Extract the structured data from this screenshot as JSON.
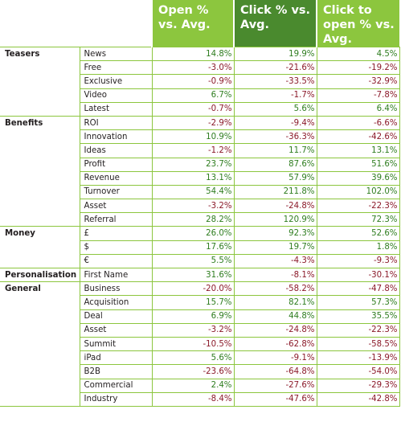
{
  "headers": [
    "Open % vs. Avg.",
    "Click % vs. Avg.",
    "Click to open % vs. Avg."
  ],
  "colors": {
    "header_light": "#8cc63e",
    "header_dark": "#4a8a2e",
    "positive": "#2e7d1f",
    "negative": "#8b1a2a",
    "rule": "#8cc63e"
  },
  "groups": [
    {
      "category": "Teasers",
      "rows": [
        {
          "term": "News",
          "open": "14.8%",
          "click": "19.9%",
          "cto": "4.5%"
        },
        {
          "term": "Free",
          "open": "-3.0%",
          "click": "-21.6%",
          "cto": "-19.2%"
        },
        {
          "term": "Exclusive",
          "open": "-0.9%",
          "click": "-33.5%",
          "cto": "-32.9%"
        },
        {
          "term": "Video",
          "open": "6.7%",
          "click": "-1.7%",
          "cto": "-7.8%"
        },
        {
          "term": "Latest",
          "open": "-0.7%",
          "click": "5.6%",
          "cto": "6.4%"
        }
      ]
    },
    {
      "category": "Benefits",
      "rows": [
        {
          "term": "ROI",
          "open": "-2.9%",
          "click": "-9.4%",
          "cto": "-6.6%"
        },
        {
          "term": "Innovation",
          "open": "10.9%",
          "click": "-36.3%",
          "cto": "-42.6%"
        },
        {
          "term": "Ideas",
          "open": "-1.2%",
          "click": "11.7%",
          "cto": "13.1%"
        },
        {
          "term": "Profit",
          "open": "23.7%",
          "click": "87.6%",
          "cto": "51.6%"
        },
        {
          "term": "Revenue",
          "open": "13.1%",
          "click": "57.9%",
          "cto": "39.6%"
        },
        {
          "term": "Turnover",
          "open": "54.4%",
          "click": "211.8%",
          "cto": "102.0%"
        },
        {
          "term": "Asset",
          "open": "-3.2%",
          "click": "-24.8%",
          "cto": "-22.3%"
        },
        {
          "term": "Referral",
          "open": "28.2%",
          "click": "120.9%",
          "cto": "72.3%"
        }
      ]
    },
    {
      "category": "Money",
      "rows": [
        {
          "term": "£",
          "open": "26.0%",
          "click": "92.3%",
          "cto": "52.6%"
        },
        {
          "term": "$",
          "open": "17.6%",
          "click": "19.7%",
          "cto": "1.8%"
        },
        {
          "term": "€",
          "open": "5.5%",
          "click": "-4.3%",
          "cto": "-9.3%"
        }
      ]
    },
    {
      "category": "Personalisation",
      "rows": [
        {
          "term": "First Name",
          "open": "31.6%",
          "click": "-8.1%",
          "cto": "-30.1%"
        }
      ]
    },
    {
      "category": "General",
      "rows": [
        {
          "term": "Business",
          "open": "-20.0%",
          "click": "-58.2%",
          "cto": "-47.8%"
        },
        {
          "term": "Acquisition",
          "open": "15.7%",
          "click": "82.1%",
          "cto": "57.3%"
        },
        {
          "term": "Deal",
          "open": "6.9%",
          "click": "44.8%",
          "cto": "35.5%"
        },
        {
          "term": "Asset",
          "open": "-3.2%",
          "click": "-24.8%",
          "cto": "-22.3%"
        },
        {
          "term": "Summit",
          "open": "-10.5%",
          "click": "-62.8%",
          "cto": "-58.5%"
        },
        {
          "term": "iPad",
          "open": "5.6%",
          "click": "-9.1%",
          "cto": "-13.9%"
        },
        {
          "term": "B2B",
          "open": "-23.6%",
          "click": "-64.8%",
          "cto": "-54.0%"
        },
        {
          "term": "Commercial",
          "open": "2.4%",
          "click": "-27.6%",
          "cto": "-29.3%"
        },
        {
          "term": "Industry",
          "open": "-8.4%",
          "click": "-47.6%",
          "cto": "-42.8%"
        }
      ]
    }
  ]
}
